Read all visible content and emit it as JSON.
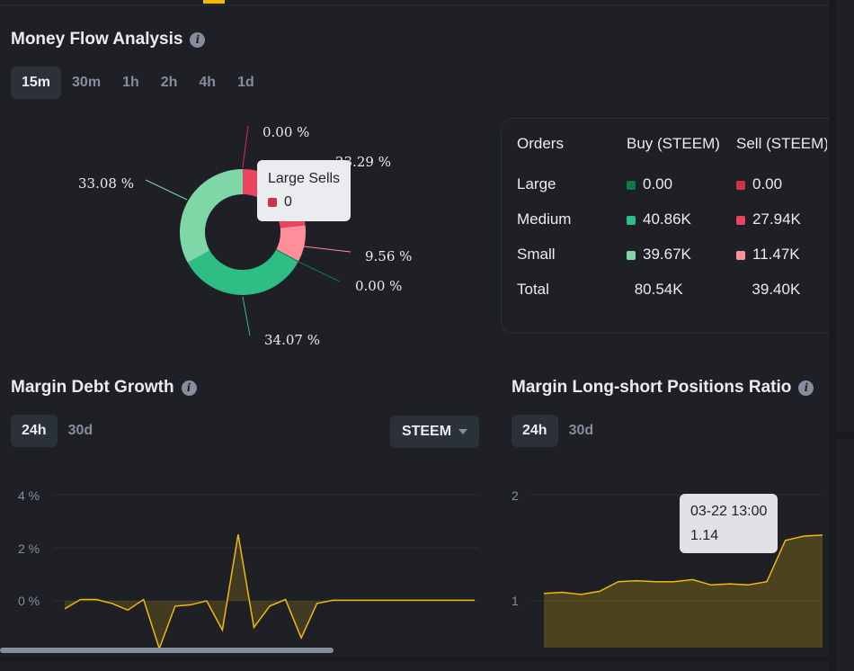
{
  "money_flow": {
    "title": "Money Flow Analysis",
    "tabs": [
      "15m",
      "30m",
      "1h",
      "2h",
      "4h",
      "1d"
    ],
    "active_tab": "15m",
    "donut": {
      "slices": [
        {
          "name": "Large Sells",
          "percent": 0.0,
          "label": "0.00 %",
          "color": "#cf304a"
        },
        {
          "name": "Medium Sells",
          "percent": 23.29,
          "label": "23.29 %",
          "color": "#e9455e"
        },
        {
          "name": "Small Sells",
          "percent": 9.56,
          "label": "9.56 %",
          "color": "#ff8e9b"
        },
        {
          "name": "Large Buys",
          "percent": 0.0,
          "label": "0.00 %",
          "color": "#0e7a48"
        },
        {
          "name": "Medium Buys",
          "percent": 34.07,
          "label": "34.07 %",
          "color": "#2ebd85"
        },
        {
          "name": "Small Buys",
          "percent": 33.08,
          "label": "33.08 %",
          "color": "#7fd7a8"
        }
      ]
    },
    "tooltip": {
      "title": "Large Sells",
      "value": "0"
    },
    "orders": {
      "headers": [
        "Orders",
        "Buy (STEEM)",
        "Sell (STEEM)"
      ],
      "rows": [
        {
          "label": "Large",
          "buy": "0.00",
          "sell": "0.00",
          "buy_color": "#0e7a48",
          "sell_color": "#cf304a"
        },
        {
          "label": "Medium",
          "buy": "40.86K",
          "sell": "27.94K",
          "buy_color": "#2ebd85",
          "sell_color": "#e9455e"
        },
        {
          "label": "Small",
          "buy": "39.67K",
          "sell": "11.47K",
          "buy_color": "#7fd7a8",
          "sell_color": "#ff8e9b"
        },
        {
          "label": "Total",
          "buy": "80.54K",
          "sell": "39.40K"
        }
      ]
    }
  },
  "margin_debt": {
    "title": "Margin Debt Growth",
    "tabs": [
      "24h",
      "30d"
    ],
    "active_tab": "24h",
    "select_value": "STEEM",
    "chart_data": {
      "type": "area",
      "y_ticks": [
        "4 %",
        "2 %",
        "0 %"
      ],
      "ylim": [
        -2,
        4
      ],
      "values": [
        -0.3,
        0.05,
        0.05,
        -0.1,
        -0.35,
        0.05,
        -1.8,
        -0.2,
        -0.15,
        0.0,
        -1.1,
        2.5,
        -1.0,
        -0.2,
        0.05,
        -1.4,
        -0.1,
        0.02,
        0.02,
        0.02,
        0.02,
        0.02,
        0.02,
        0.02,
        0.02,
        0.02,
        0.02
      ]
    }
  },
  "long_short": {
    "title": "Margin Long-short Positions Ratio",
    "tabs": [
      "24h",
      "30d"
    ],
    "active_tab": "24h",
    "chart_data": {
      "type": "area",
      "y_ticks": [
        "2",
        "1"
      ],
      "ylim": [
        0.85,
        2
      ],
      "values": [
        1.07,
        1.08,
        1.06,
        1.09,
        1.18,
        1.19,
        1.18,
        1.18,
        1.2,
        1.15,
        1.16,
        1.15,
        1.18,
        1.57,
        1.61,
        1.62
      ]
    },
    "tooltip": {
      "time": "03-22 13:00",
      "value": "1.14"
    }
  }
}
